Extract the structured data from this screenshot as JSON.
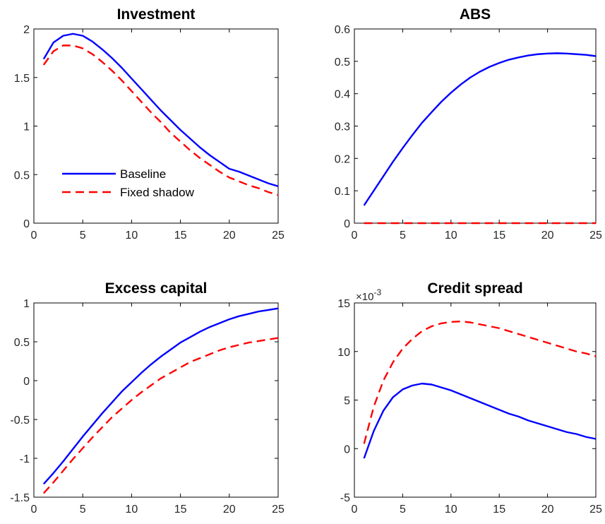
{
  "chart_data": [
    {
      "type": "line",
      "title": "Investment",
      "xlim": [
        0,
        25
      ],
      "ylim": [
        0,
        2
      ],
      "xticks": [
        0,
        5,
        10,
        15,
        20,
        25
      ],
      "yticks": [
        0,
        0.5,
        1,
        1.5,
        2
      ],
      "ytick_labels": [
        "0",
        "0.5",
        "1",
        "1.5",
        "2"
      ],
      "legend": {
        "placement": "center-left",
        "entries": [
          "Baseline",
          "Fixed shadow"
        ]
      },
      "series": [
        {
          "name": "Baseline",
          "color": "#0000ff",
          "style": "solid",
          "x": [
            1,
            2,
            3,
            4,
            5,
            6,
            7,
            8,
            9,
            10,
            11,
            12,
            13,
            14,
            15,
            16,
            17,
            18,
            19,
            20,
            21,
            22,
            23,
            24,
            25
          ],
          "y": [
            1.69,
            1.86,
            1.93,
            1.95,
            1.93,
            1.87,
            1.79,
            1.7,
            1.6,
            1.49,
            1.38,
            1.27,
            1.16,
            1.06,
            0.96,
            0.87,
            0.78,
            0.7,
            0.63,
            0.56,
            0.53,
            0.49,
            0.45,
            0.41,
            0.38
          ]
        },
        {
          "name": "Fixed shadow",
          "color": "#ff0000",
          "style": "dashed",
          "x": [
            1,
            2,
            3,
            4,
            5,
            6,
            7,
            8,
            9,
            10,
            11,
            12,
            13,
            14,
            15,
            16,
            17,
            18,
            19,
            20,
            21,
            22,
            23,
            24,
            25
          ],
          "y": [
            1.63,
            1.77,
            1.83,
            1.83,
            1.8,
            1.74,
            1.66,
            1.57,
            1.47,
            1.36,
            1.25,
            1.14,
            1.04,
            0.93,
            0.84,
            0.75,
            0.67,
            0.6,
            0.53,
            0.47,
            0.43,
            0.39,
            0.36,
            0.32,
            0.29
          ]
        }
      ]
    },
    {
      "type": "line",
      "title": "ABS",
      "xlim": [
        0,
        25
      ],
      "ylim": [
        0,
        0.6
      ],
      "xticks": [
        0,
        5,
        10,
        15,
        20,
        25
      ],
      "yticks": [
        0,
        0.1,
        0.2,
        0.3,
        0.4,
        0.5,
        0.6
      ],
      "ytick_labels": [
        "0",
        "0.1",
        "0.2",
        "0.3",
        "0.4",
        "0.5",
        "0.6"
      ],
      "series": [
        {
          "name": "Baseline",
          "color": "#0000ff",
          "style": "solid",
          "x": [
            1,
            2,
            3,
            4,
            5,
            6,
            7,
            8,
            9,
            10,
            11,
            12,
            13,
            14,
            15,
            16,
            17,
            18,
            19,
            20,
            21,
            22,
            23,
            24,
            25
          ],
          "y": [
            0.055,
            0.1,
            0.145,
            0.19,
            0.232,
            0.272,
            0.31,
            0.343,
            0.375,
            0.403,
            0.428,
            0.45,
            0.468,
            0.483,
            0.495,
            0.505,
            0.512,
            0.518,
            0.522,
            0.524,
            0.525,
            0.524,
            0.522,
            0.52,
            0.516
          ]
        },
        {
          "name": "Fixed shadow",
          "color": "#ff0000",
          "style": "dashed",
          "x": [
            1,
            25
          ],
          "y": [
            0,
            0
          ]
        }
      ]
    },
    {
      "type": "line",
      "title": "Excess capital",
      "xlim": [
        0,
        25
      ],
      "ylim": [
        -1.5,
        1
      ],
      "xticks": [
        0,
        5,
        10,
        15,
        20,
        25
      ],
      "yticks": [
        -1.5,
        -1,
        -0.5,
        0,
        0.5,
        1
      ],
      "ytick_labels": [
        "-1.5",
        "-1",
        "-0.5",
        "0",
        "0.5",
        "1"
      ],
      "series": [
        {
          "name": "Baseline",
          "color": "#0000ff",
          "style": "solid",
          "x": [
            1,
            2,
            3,
            4,
            5,
            6,
            7,
            8,
            9,
            10,
            11,
            12,
            13,
            14,
            15,
            16,
            17,
            18,
            19,
            20,
            21,
            22,
            23,
            24,
            25
          ],
          "y": [
            -1.33,
            -1.19,
            -1.04,
            -0.88,
            -0.72,
            -0.57,
            -0.42,
            -0.28,
            -0.14,
            -0.02,
            0.1,
            0.21,
            0.31,
            0.4,
            0.49,
            0.56,
            0.63,
            0.69,
            0.74,
            0.79,
            0.83,
            0.86,
            0.89,
            0.91,
            0.93
          ]
        },
        {
          "name": "Fixed shadow",
          "color": "#ff0000",
          "style": "dashed",
          "x": [
            1,
            2,
            3,
            4,
            5,
            6,
            7,
            8,
            9,
            10,
            11,
            12,
            13,
            14,
            15,
            16,
            17,
            18,
            19,
            20,
            21,
            22,
            23,
            24,
            25
          ],
          "y": [
            -1.45,
            -1.31,
            -1.16,
            -1.01,
            -0.87,
            -0.73,
            -0.6,
            -0.47,
            -0.36,
            -0.25,
            -0.15,
            -0.06,
            0.03,
            0.1,
            0.17,
            0.24,
            0.29,
            0.34,
            0.39,
            0.43,
            0.46,
            0.49,
            0.51,
            0.53,
            0.55
          ]
        }
      ]
    },
    {
      "type": "line",
      "title": "Credit spread",
      "exponent_label": "×10",
      "exponent_power": "-3",
      "xlim": [
        0,
        25
      ],
      "ylim": [
        -5,
        15
      ],
      "xticks": [
        0,
        5,
        10,
        15,
        20,
        25
      ],
      "yticks": [
        -5,
        0,
        5,
        10,
        15
      ],
      "ytick_labels": [
        "-5",
        "0",
        "5",
        "10",
        "15"
      ],
      "series": [
        {
          "name": "Baseline",
          "color": "#0000ff",
          "style": "solid",
          "x": [
            1,
            2,
            3,
            4,
            5,
            6,
            7,
            8,
            9,
            10,
            11,
            12,
            13,
            14,
            15,
            16,
            17,
            18,
            19,
            20,
            21,
            22,
            23,
            24,
            25
          ],
          "y": [
            -1.0,
            1.8,
            3.9,
            5.3,
            6.1,
            6.5,
            6.7,
            6.6,
            6.3,
            6.0,
            5.6,
            5.2,
            4.8,
            4.4,
            4.0,
            3.6,
            3.3,
            2.9,
            2.6,
            2.3,
            2.0,
            1.7,
            1.5,
            1.2,
            1.0
          ]
        },
        {
          "name": "Fixed shadow",
          "color": "#ff0000",
          "style": "dashed",
          "x": [
            1,
            2,
            3,
            4,
            5,
            6,
            7,
            8,
            9,
            10,
            11,
            12,
            13,
            14,
            15,
            16,
            17,
            18,
            19,
            20,
            21,
            22,
            23,
            24,
            25
          ],
          "y": [
            0.5,
            4.3,
            7.0,
            8.9,
            10.3,
            11.3,
            12.1,
            12.6,
            12.9,
            13.05,
            13.1,
            13.0,
            12.8,
            12.6,
            12.4,
            12.1,
            11.8,
            11.5,
            11.2,
            10.9,
            10.6,
            10.3,
            10.0,
            9.8,
            9.5
          ]
        }
      ]
    }
  ]
}
